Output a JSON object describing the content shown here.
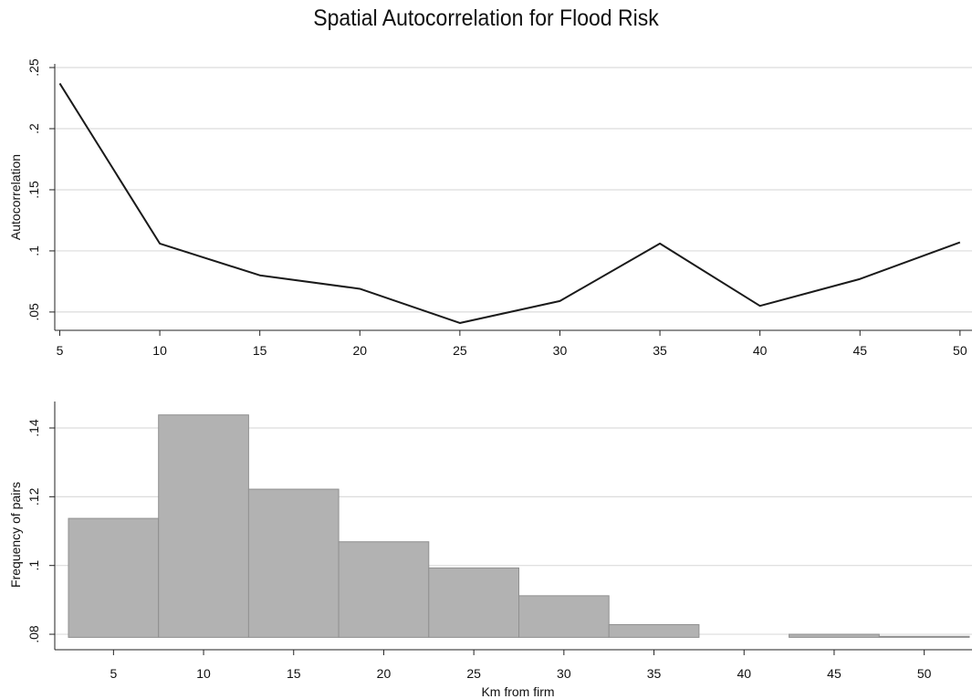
{
  "title": "Spatial Autocorrelation for Flood Risk",
  "chart_data": [
    {
      "type": "line",
      "title": "Spatial Autocorrelation for Flood Risk",
      "xlabel": "",
      "ylabel": "Autocorrelation",
      "x": [
        5,
        10,
        15,
        20,
        25,
        30,
        35,
        40,
        45,
        50
      ],
      "series": [
        {
          "values": [
            0.237,
            0.106,
            0.08,
            0.069,
            0.041,
            0.059,
            0.106,
            0.055,
            0.077,
            0.107
          ]
        }
      ],
      "xlim": [
        4.75,
        50.6
      ],
      "ylim": [
        0.035,
        0.253
      ],
      "xticks": [
        "5",
        "10",
        "15",
        "20",
        "25",
        "30",
        "35",
        "40",
        "45",
        "50"
      ],
      "yticks": [
        ".05",
        ".1",
        ".15",
        ".2",
        ".25"
      ],
      "grid": true,
      "line_color": "#1a1a1a"
    },
    {
      "type": "bar",
      "xlabel": "Km from firm",
      "ylabel": "Frequency of pairs",
      "x": [
        5,
        10,
        15,
        20,
        25,
        30,
        35,
        40,
        45,
        50
      ],
      "values": [
        0.1137,
        0.1438,
        0.1222,
        0.1069,
        0.0993,
        0.0912,
        0.0828,
        0.0791,
        0.08,
        0.0794
      ],
      "bin_width": 5,
      "baseline": 0.0791,
      "xlim": [
        2.5,
        52.5
      ],
      "ylim": [
        0.0755,
        0.1477
      ],
      "xticks": [
        "5",
        "10",
        "15",
        "20",
        "25",
        "30",
        "35",
        "40",
        "45",
        "50"
      ],
      "yticks": [
        ".08",
        ".1",
        ".12",
        ".14"
      ],
      "grid": true,
      "bar_color": "#b2b2b2",
      "bar_edge_color": "#909090"
    }
  ]
}
